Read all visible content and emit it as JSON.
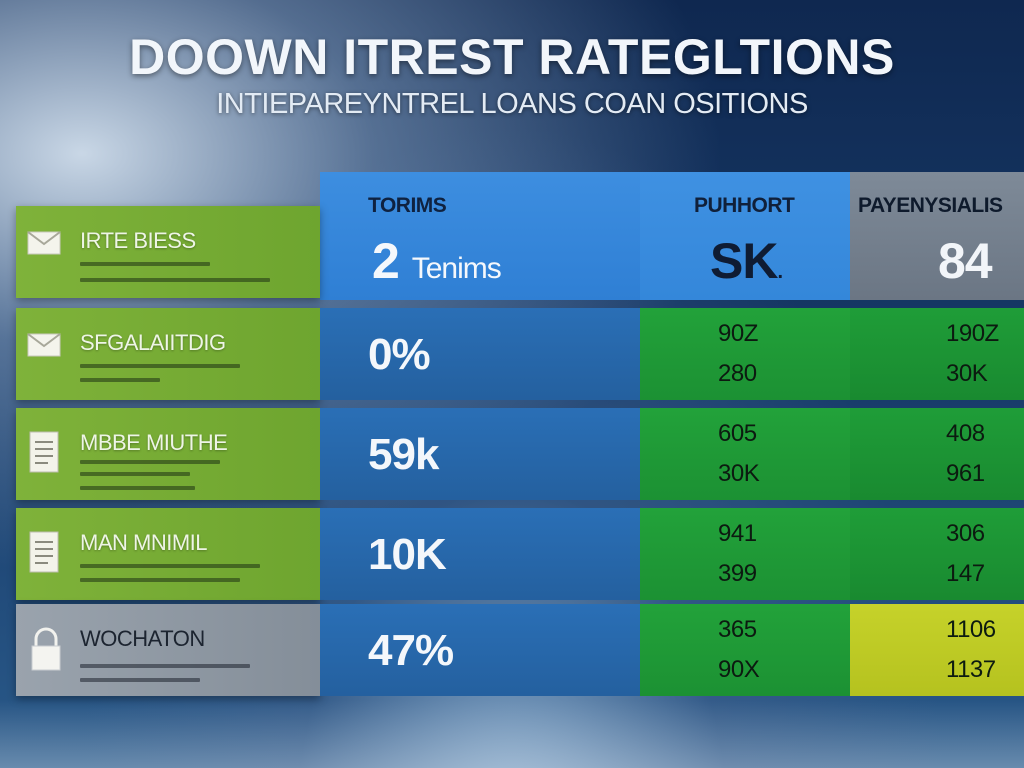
{
  "title": "DOOWN ITREST RATEGLTIONS",
  "subtitle": "INTIEPAREYNTREL LOANS COAN OSITIONS",
  "headers": [
    {
      "label": "TORIMS",
      "value": "2",
      "unit": "Tenims"
    },
    {
      "label": "PUHHORT",
      "value": "SK",
      "suffix": "."
    },
    {
      "label": "PAYENYSIALIS",
      "value": "84"
    }
  ],
  "rows": [
    {
      "name": "IRTE BIESS",
      "icon": "envelope-icon",
      "c1": "",
      "c2": [
        "",
        ""
      ],
      "c3": [
        "",
        ""
      ]
    },
    {
      "name": "SFGALAIITDIG",
      "icon": "envelope-icon",
      "c1": "0%",
      "c2": [
        "90Z",
        "280"
      ],
      "c3": [
        "190Z",
        "30K"
      ]
    },
    {
      "name": "MBBE MIUTHE",
      "icon": "document-icon",
      "c1": "59k",
      "c2": [
        "605",
        "30K"
      ],
      "c3": [
        "408",
        "961"
      ]
    },
    {
      "name": "MAN MNIMIL",
      "icon": "document-icon",
      "c1": "10K",
      "c2": [
        "941",
        "399"
      ],
      "c3": [
        "306",
        "147"
      ]
    },
    {
      "name": "WOCHATON",
      "icon": "lock-icon",
      "c1": "47%",
      "c2": [
        "365",
        "90X"
      ],
      "c3": [
        "1106",
        "1137"
      ]
    }
  ],
  "colors": {
    "green": "#7fb23a",
    "blue": "#2f7fd4",
    "grey": "#848e99",
    "bright_green": "#22a23a",
    "yellow": "#c6d22a"
  }
}
